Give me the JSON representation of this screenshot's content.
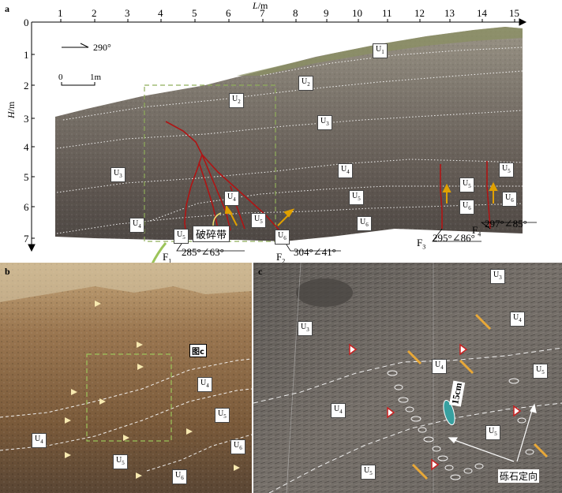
{
  "panel_a": {
    "letter": "a",
    "x_axis_label": "L",
    "x_axis_unit": "/m",
    "y_axis_label": "H",
    "y_axis_unit": "/m",
    "x_ticks": [
      "1",
      "2",
      "3",
      "4",
      "5",
      "6",
      "7",
      "8",
      "9",
      "10",
      "11",
      "12",
      "13",
      "14",
      "15"
    ],
    "y_ticks": [
      "0",
      "1",
      "2",
      "3",
      "4",
      "5",
      "6",
      "7"
    ],
    "bearing": "290°",
    "scale_start": "0",
    "scale_end": "1m",
    "breccia_label": "破碎带",
    "faults": [
      {
        "name": "F",
        "sub": "1",
        "orientation": "285°∠63°"
      },
      {
        "name": "F",
        "sub": "2",
        "orientation": "304°∠41°"
      },
      {
        "name": "F",
        "sub": "3",
        "orientation": "295°∠86°"
      },
      {
        "name": "F",
        "sub": "4",
        "orientation": "297°∠85°"
      }
    ],
    "units": [
      "U1",
      "U2",
      "U2",
      "U3",
      "U3",
      "U4",
      "U4",
      "U4",
      "U4",
      "U5",
      "U5",
      "U5",
      "U5",
      "U5",
      "U5",
      "U6",
      "U6",
      "U6",
      "U6"
    ]
  },
  "panel_b": {
    "letter": "b",
    "inset_label": "图c",
    "units": [
      "U4",
      "U4",
      "U5",
      "U5",
      "U6",
      "U6"
    ]
  },
  "panel_c": {
    "letter": "c",
    "scale_label": "15cm",
    "orientation_label": "砾石定向",
    "units": [
      "U3",
      "U3",
      "U4",
      "U4",
      "U4",
      "U5",
      "U5",
      "U5"
    ]
  },
  "colors": {
    "fault_red": "#b01414",
    "box_green": "#8fae5a",
    "sky_green": "#8f9a7a",
    "outcrop_gray": "#6e6860",
    "panel_b_brown": "#8a6a44",
    "panel_c_gray": "#6e6a63"
  }
}
